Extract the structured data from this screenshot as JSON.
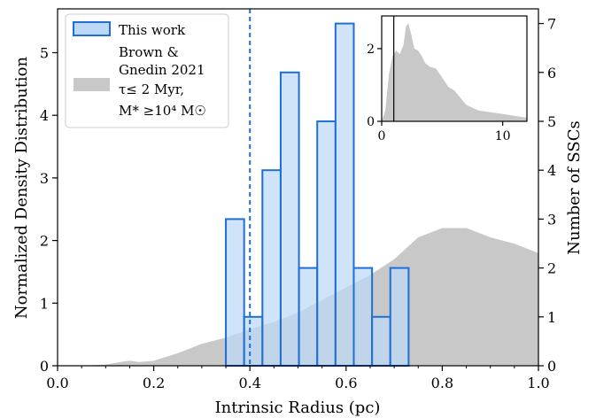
{
  "chart_data": {
    "type": "bar",
    "xlabel": "Intrinsic Radius (pc)",
    "ylabel": "Normalized Density Distribution",
    "y2label": "Number of SSCs",
    "xlim": [
      0.0,
      1.0
    ],
    "ylim": [
      0,
      5.7
    ],
    "y2lim": [
      0,
      7.3
    ],
    "x_ticks": [
      "0.0",
      "0.2",
      "0.4",
      "0.6",
      "0.8",
      "1.0"
    ],
    "y_ticks": [
      "0",
      "1",
      "2",
      "3",
      "4",
      "5"
    ],
    "y2_ticks": [
      "0",
      "1",
      "2",
      "3",
      "4",
      "5",
      "6",
      "7"
    ],
    "vline_x": 0.4,
    "histogram": {
      "name": "This work",
      "color": "#1f6fd6",
      "fill": "#bcd8f7",
      "bins": [
        {
          "x0": 0.35,
          "x1": 0.388,
          "count": 3
        },
        {
          "x0": 0.388,
          "x1": 0.426,
          "count": 1
        },
        {
          "x0": 0.426,
          "x1": 0.464,
          "count": 4
        },
        {
          "x0": 0.464,
          "x1": 0.502,
          "count": 6
        },
        {
          "x0": 0.502,
          "x1": 0.54,
          "count": 2
        },
        {
          "x0": 0.54,
          "x1": 0.578,
          "count": 5
        },
        {
          "x0": 0.578,
          "x1": 0.616,
          "count": 7
        },
        {
          "x0": 0.616,
          "x1": 0.654,
          "count": 2
        },
        {
          "x0": 0.654,
          "x1": 0.692,
          "count": 1
        },
        {
          "x0": 0.692,
          "x1": 0.73,
          "count": 2
        }
      ]
    },
    "kde": {
      "name_lines": [
        "Brown &",
        "Gnedin 2021",
        "τ≤ 2 Myr,",
        "M* ≥10⁴ M☉"
      ],
      "color": "#c8c8c8",
      "x": [
        0.0,
        0.05,
        0.1,
        0.13,
        0.15,
        0.17,
        0.2,
        0.25,
        0.3,
        0.35,
        0.4,
        0.45,
        0.5,
        0.55,
        0.6,
        0.65,
        0.7,
        0.75,
        0.8,
        0.85,
        0.9,
        0.95,
        1.0
      ],
      "y": [
        0.0,
        0.0,
        0.02,
        0.06,
        0.08,
        0.06,
        0.08,
        0.2,
        0.35,
        0.45,
        0.58,
        0.7,
        0.85,
        1.05,
        1.25,
        1.45,
        1.7,
        2.05,
        2.2,
        2.2,
        2.05,
        1.95,
        1.8
      ]
    },
    "inset": {
      "xlim": [
        0,
        12
      ],
      "ylim": [
        0,
        2.9
      ],
      "x_ticks": [
        "0",
        "10"
      ],
      "y_ticks": [
        "0",
        "2"
      ],
      "x": [
        0,
        0.3,
        0.6,
        0.9,
        1.2,
        1.5,
        1.8,
        2.0,
        2.2,
        2.4,
        2.7,
        3.0,
        3.3,
        3.6,
        4.0,
        4.5,
        5.0,
        5.5,
        6.0,
        6.5,
        7.0,
        8.0,
        9.0,
        10.0,
        11.0,
        12.0
      ],
      "y": [
        0.0,
        0.3,
        1.3,
        1.8,
        1.95,
        1.85,
        2.1,
        2.6,
        2.7,
        2.45,
        2.0,
        1.95,
        1.8,
        1.6,
        1.5,
        1.45,
        1.2,
        0.95,
        0.85,
        0.65,
        0.45,
        0.3,
        0.25,
        0.2,
        0.15,
        0.1
      ]
    }
  }
}
